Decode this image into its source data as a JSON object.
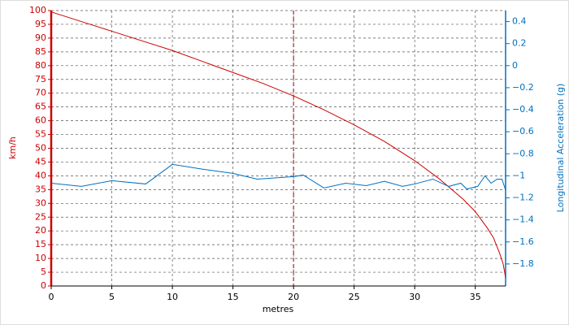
{
  "chart_data": {
    "type": "line",
    "x_label": "metres",
    "y_label": "km/h",
    "y2_label": "Longitudinal Acceleration (g)",
    "y_color": "#cc0000",
    "y2_color": "#0070c0",
    "xlim": [
      0,
      37.5
    ],
    "xticks": [
      0,
      5,
      10,
      15,
      20,
      25,
      30,
      35
    ],
    "ylim": [
      0,
      100
    ],
    "yticks": [
      0,
      5,
      10,
      15,
      20,
      25,
      30,
      35,
      40,
      45,
      50,
      55,
      60,
      65,
      70,
      75,
      80,
      85,
      90,
      95,
      100
    ],
    "y2lim": [
      -2,
      0.5
    ],
    "y2ticks": [
      {
        "value": -1.8,
        "label": "−1.8"
      },
      {
        "value": -1.6,
        "label": "−1.6"
      },
      {
        "value": -1.4,
        "label": "−1.4"
      },
      {
        "value": -1.2,
        "label": "−1.2"
      },
      {
        "value": -1,
        "label": "−1"
      },
      {
        "value": -0.8,
        "label": "−0.8"
      },
      {
        "value": -0.6,
        "label": "−0.6"
      },
      {
        "value": -0.4,
        "label": "−0.4"
      },
      {
        "value": -0.2,
        "label": "−0.2"
      },
      0,
      0.2,
      0.4
    ],
    "grid": true,
    "marker_x": 20,
    "marker_color": "#990000",
    "series": [
      {
        "name": "km/h",
        "color": "#cc0000",
        "x": [
          0,
          2.5,
          5,
          7.5,
          10,
          12.5,
          15,
          17.5,
          20,
          22.5,
          25,
          27.5,
          30,
          32,
          34,
          35,
          36,
          36.5,
          37,
          37.3,
          37.5
        ],
        "values": [
          99.5,
          96,
          92.5,
          89,
          85.5,
          81.5,
          77.5,
          73.5,
          69,
          64,
          58.5,
          52.5,
          45.5,
          39,
          31.5,
          27,
          21,
          17.5,
          12,
          8,
          3
        ]
      },
      {
        "name": "Longitudinal Acceleration (g)",
        "color": "#0070c0",
        "axis": "y2",
        "x": [
          0,
          2.5,
          5,
          7.8,
          10,
          12.5,
          15,
          17,
          20,
          20.8,
          22.5,
          24.3,
          26,
          27.5,
          29,
          30,
          31.5,
          32.8,
          33.8,
          34.3,
          35.2,
          35.8,
          36.3,
          36.8,
          37.2,
          37.5
        ],
        "values": [
          -1.067,
          -1.096,
          -1.044,
          -1.074,
          -0.896,
          -0.94,
          -0.978,
          -1.03,
          -1.007,
          -0.993,
          -1.11,
          -1.067,
          -1.089,
          -1.05,
          -1.096,
          -1.074,
          -1.03,
          -1.096,
          -1.067,
          -1.12,
          -1.096,
          -1.0,
          -1.067,
          -1.03,
          -1.03,
          -1.13
        ]
      }
    ]
  }
}
